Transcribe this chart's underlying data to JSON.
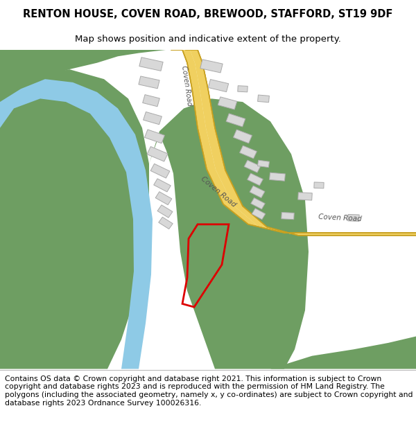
{
  "title": "RENTON HOUSE, COVEN ROAD, BREWOOD, STAFFORD, ST19 9DF",
  "subtitle": "Map shows position and indicative extent of the property.",
  "footer": "Contains OS data © Crown copyright and database right 2021. This information is subject to Crown copyright and database rights 2023 and is reproduced with the permission of HM Land Registry. The polygons (including the associated geometry, namely x, y co-ordinates) are subject to Crown copyright and database rights 2023 Ordnance Survey 100026316.",
  "map_bg": "#ffffff",
  "green_color": "#6e9e62",
  "blue_color": "#8ecae6",
  "road_fill": "#faf3c0",
  "road_stripe": "#f0d060",
  "road_edge": "#c8a020",
  "building_color": "#d8d8d8",
  "building_edge": "#aaaaaa",
  "plot_color": "#dd0000",
  "title_fontsize": 10.5,
  "subtitle_fontsize": 9.5,
  "footer_fontsize": 7.8
}
